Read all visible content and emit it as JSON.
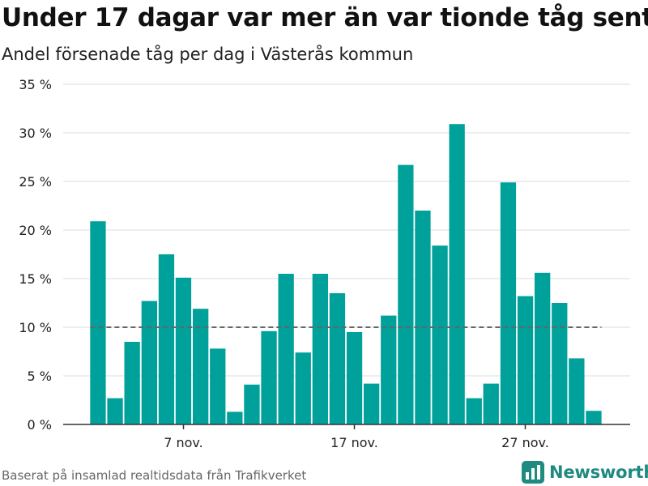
{
  "header": {
    "title": "Under 17 dagar var mer än var tionde tåg sent",
    "subtitle": "Andel försenade tåg per dag i Västerås kommun"
  },
  "footer": {
    "source": "Baserat på insamlad realtidsdata från Trafikverket",
    "brand": "Newsworthy",
    "brand_icon": "bar-chart-logo-icon"
  },
  "colors": {
    "bar": "#00a19a",
    "reference_line": "#666666",
    "grid": "#dddddd",
    "brand": "#1f8a80"
  },
  "chart_data": {
    "type": "bar",
    "title": "Under 17 dagar var mer än var tionde tåg sent",
    "subtitle": "Andel försenade tåg per dag i Västerås kommun",
    "x_start": "2020-11-02",
    "values": [
      20.9,
      2.7,
      8.5,
      12.7,
      17.5,
      15.1,
      11.9,
      7.8,
      1.3,
      4.1,
      9.6,
      15.5,
      7.4,
      15.5,
      13.5,
      9.5,
      4.2,
      11.2,
      26.7,
      22.0,
      18.4,
      30.9,
      2.7,
      4.2,
      24.9,
      13.2,
      15.6,
      12.5,
      6.8,
      1.4
    ],
    "x_tick_labels": [
      "7 nov.",
      "17 nov.",
      "27 nov."
    ],
    "x_tick_dates": [
      "2020-11-07",
      "2020-11-17",
      "2020-11-27"
    ],
    "y_tick_labels": [
      "0 %",
      "5 %",
      "10 %",
      "15 %",
      "20 %",
      "25 %",
      "30 %",
      "35 %"
    ],
    "y_ticks": [
      0,
      5,
      10,
      15,
      20,
      25,
      30,
      35
    ],
    "ylim": [
      0,
      35
    ],
    "reference_line": 10,
    "grid": true,
    "xlabel": "",
    "ylabel": ""
  }
}
